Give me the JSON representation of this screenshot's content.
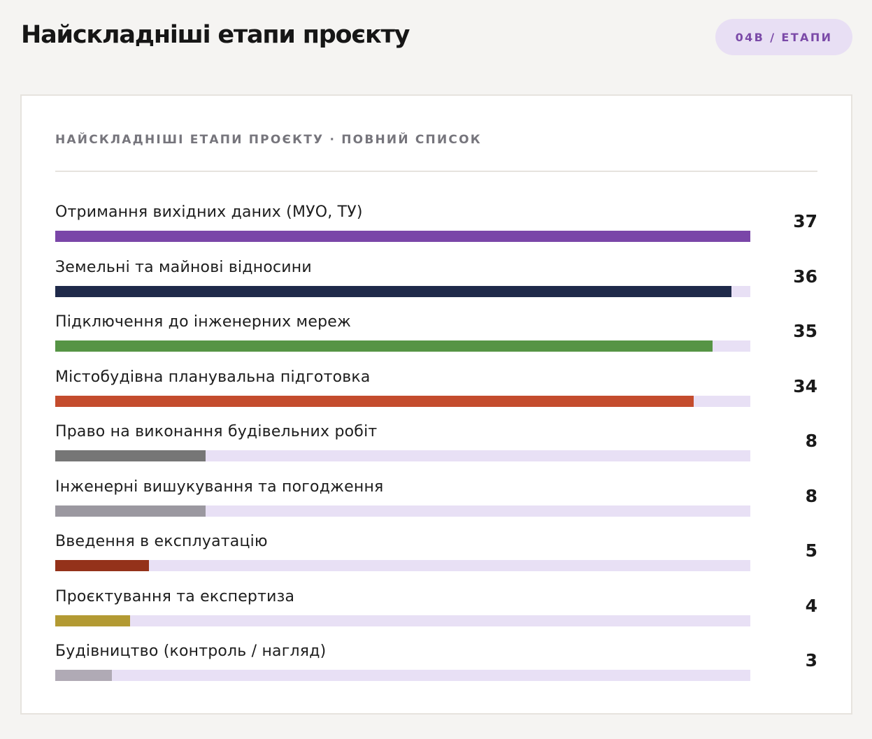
{
  "header": {
    "title": "Найскладніші етапи проєкту",
    "badge": "04B / ЕТАПИ"
  },
  "card": {
    "title": "НАЙСКЛАДНІШІ ЕТАПИ ПРОЄКТУ · ПОВНИЙ СПИСОК"
  },
  "colors": {
    "track": "#e8e0f5",
    "accent": "#7b4aa8"
  },
  "chart_data": {
    "type": "bar",
    "orientation": "horizontal",
    "title": "НАЙСКЛАДНІШІ ЕТАПИ ПРОЄКТУ · ПОВНИЙ СПИСОК",
    "xlabel": "",
    "ylabel": "",
    "xlim": [
      0,
      37
    ],
    "grid": false,
    "legend": null,
    "categories": [
      "Отримання вихідних даних (МУО, ТУ)",
      "Земельні та майнові відносини",
      "Підключення до інженерних мереж",
      "Містобудівна планувальна підготовка",
      "Право на виконання будівельних робіт",
      "Інженерні вишукування та погодження",
      "Введення в експлуатацію",
      "Проєктування та експертиза",
      "Будівництво (контроль / нагляд)"
    ],
    "values": [
      37,
      36,
      35,
      34,
      8,
      8,
      5,
      4,
      3
    ],
    "bar_colors": [
      "#7a46a8",
      "#1f2a4a",
      "#569445",
      "#c44c2d",
      "#767676",
      "#9b98a0",
      "#94321a",
      "#b39a33",
      "#b0aab5"
    ]
  },
  "rows": [
    {
      "label": "Отримання вихідних даних (МУО, ТУ)",
      "value": "37"
    },
    {
      "label": "Земельні та майнові відносини",
      "value": "36"
    },
    {
      "label": "Підключення до інженерних мереж",
      "value": "35"
    },
    {
      "label": "Містобудівна планувальна підготовка",
      "value": "34"
    },
    {
      "label": "Право на виконання будівельних робіт",
      "value": "8"
    },
    {
      "label": "Інженерні вишукування та погодження",
      "value": "8"
    },
    {
      "label": "Введення в експлуатацію",
      "value": "5"
    },
    {
      "label": "Проєктування та експертиза",
      "value": "4"
    },
    {
      "label": "Будівництво (контроль / нагляд)",
      "value": "3"
    }
  ]
}
